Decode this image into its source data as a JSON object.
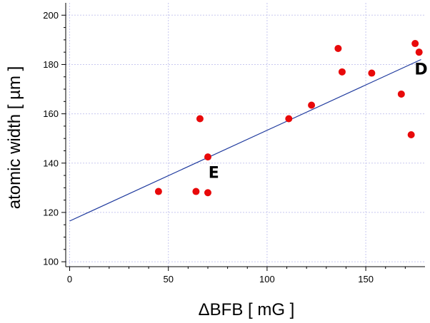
{
  "chart_data": {
    "type": "scatter",
    "title": "",
    "xlabel": "ΔBFB [ mG ]",
    "ylabel": "atomic width [ µm ]",
    "xlim": [
      -2,
      180
    ],
    "ylim": [
      98,
      205
    ],
    "x_ticks": [
      0,
      50,
      100,
      150
    ],
    "y_ticks": [
      100,
      120,
      140,
      160,
      180,
      200
    ],
    "grid": true,
    "legend": "none",
    "colors": {
      "points": "#e8090a",
      "fit_line": "#1f3a9e",
      "grid": "#c8c8ef",
      "axes": "#000000"
    },
    "series": [
      {
        "type": "scatter",
        "points": [
          {
            "x": 45,
            "y": 128.5
          },
          {
            "x": 64,
            "y": 128.5
          },
          {
            "x": 66,
            "y": 158
          },
          {
            "x": 70,
            "y": 128
          },
          {
            "x": 70,
            "y": 142.5
          },
          {
            "x": 111,
            "y": 158
          },
          {
            "x": 122.5,
            "y": 163.5
          },
          {
            "x": 136,
            "y": 186.5
          },
          {
            "x": 138,
            "y": 177
          },
          {
            "x": 153,
            "y": 176.5
          },
          {
            "x": 168,
            "y": 168
          },
          {
            "x": 173,
            "y": 151.5
          },
          {
            "x": 175,
            "y": 188.5
          },
          {
            "x": 177,
            "y": 185
          }
        ]
      },
      {
        "type": "line",
        "points": [
          {
            "x": 0,
            "y": 116.5
          },
          {
            "x": 178,
            "y": 182
          }
        ]
      }
    ],
    "annotations": [
      {
        "text": "E",
        "x": 73,
        "y": 134
      },
      {
        "text": "D",
        "x": 178,
        "y": 176
      }
    ]
  }
}
